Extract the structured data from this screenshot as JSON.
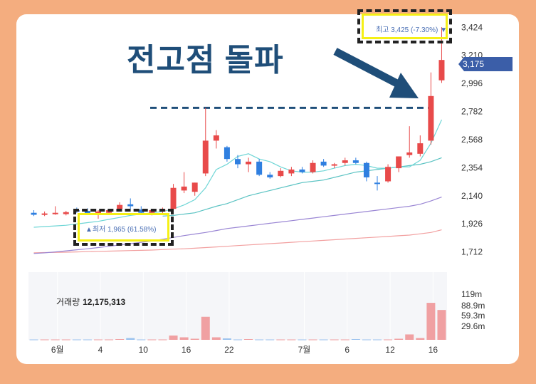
{
  "headline": "전고점 돌파",
  "high_label": "최고 3,425 (-7.30%) ▼",
  "low_label": "▲최저 1,965 (61.58%)",
  "current_price_tag": "3,175",
  "volume_label": "거래량",
  "volume_value": "12,175,313",
  "chart_data": {
    "type": "candlestick",
    "price_axis": {
      "ticks": [
        "3,424",
        "3,210",
        "2,996",
        "2,782",
        "2,568",
        "2,354",
        "2,140",
        "1,926",
        "1,712"
      ],
      "ylim": [
        1650,
        3480
      ]
    },
    "volume_axis": {
      "ticks": [
        "119m",
        "88.9m",
        "59.3m",
        "29.6m"
      ]
    },
    "x_ticks": [
      "6월",
      "4",
      "10",
      "16",
      "22",
      "7월",
      "6",
      "12",
      "16"
    ],
    "colors": {
      "up": "#e84a4a",
      "down": "#2f7fe0",
      "ma5": "#6fd6d6",
      "ma20": "#5bc3c3",
      "ma60": "#9a86d4",
      "ma120": "#f2a0a0"
    },
    "candles": [
      {
        "o": 2010,
        "h": 2030,
        "l": 1985,
        "c": 1995
      },
      {
        "o": 1995,
        "h": 2020,
        "l": 1985,
        "c": 2005
      },
      {
        "o": 2005,
        "h": 2060,
        "l": 1995,
        "c": 2010
      },
      {
        "o": 2000,
        "h": 2025,
        "l": 1990,
        "c": 2015
      },
      {
        "o": 2030,
        "h": 2050,
        "l": 2010,
        "c": 2025
      },
      {
        "o": 2025,
        "h": 2045,
        "l": 1995,
        "c": 2005
      },
      {
        "o": 1995,
        "h": 2030,
        "l": 1965,
        "c": 2020
      },
      {
        "o": 2010,
        "h": 2040,
        "l": 2000,
        "c": 2030
      },
      {
        "o": 2040,
        "h": 2090,
        "l": 2030,
        "c": 2070
      },
      {
        "o": 2075,
        "h": 2120,
        "l": 2040,
        "c": 2060
      },
      {
        "o": 2035,
        "h": 2060,
        "l": 2000,
        "c": 2010
      },
      {
        "o": 2010,
        "h": 2040,
        "l": 1990,
        "c": 2030
      },
      {
        "o": 2020,
        "h": 2050,
        "l": 2005,
        "c": 2035
      },
      {
        "o": 2040,
        "h": 2230,
        "l": 2035,
        "c": 2200
      },
      {
        "o": 2180,
        "h": 2320,
        "l": 2160,
        "c": 2210
      },
      {
        "o": 2170,
        "h": 2240,
        "l": 2140,
        "c": 2240
      },
      {
        "o": 2310,
        "h": 2810,
        "l": 2290,
        "c": 2560
      },
      {
        "o": 2560,
        "h": 2640,
        "l": 2500,
        "c": 2600
      },
      {
        "o": 2510,
        "h": 2520,
        "l": 2400,
        "c": 2420
      },
      {
        "o": 2420,
        "h": 2450,
        "l": 2350,
        "c": 2380
      },
      {
        "o": 2380,
        "h": 2430,
        "l": 2320,
        "c": 2400
      },
      {
        "o": 2400,
        "h": 2420,
        "l": 2290,
        "c": 2300
      },
      {
        "o": 2300,
        "h": 2320,
        "l": 2270,
        "c": 2280
      },
      {
        "o": 2290,
        "h": 2350,
        "l": 2280,
        "c": 2330
      },
      {
        "o": 2310,
        "h": 2360,
        "l": 2290,
        "c": 2340
      },
      {
        "o": 2340,
        "h": 2360,
        "l": 2310,
        "c": 2320
      },
      {
        "o": 2320,
        "h": 2410,
        "l": 2310,
        "c": 2390
      },
      {
        "o": 2400,
        "h": 2420,
        "l": 2360,
        "c": 2370
      },
      {
        "o": 2370,
        "h": 2390,
        "l": 2350,
        "c": 2380
      },
      {
        "o": 2390,
        "h": 2430,
        "l": 2370,
        "c": 2410
      },
      {
        "o": 2410,
        "h": 2430,
        "l": 2380,
        "c": 2390
      },
      {
        "o": 2390,
        "h": 2400,
        "l": 2250,
        "c": 2280
      },
      {
        "o": 2240,
        "h": 2290,
        "l": 2180,
        "c": 2230
      },
      {
        "o": 2250,
        "h": 2380,
        "l": 2240,
        "c": 2360
      },
      {
        "o": 2350,
        "h": 2440,
        "l": 2320,
        "c": 2440
      },
      {
        "o": 2450,
        "h": 2670,
        "l": 2430,
        "c": 2470
      },
      {
        "o": 2460,
        "h": 2600,
        "l": 2440,
        "c": 2540
      },
      {
        "o": 2560,
        "h": 3080,
        "l": 2530,
        "c": 2900
      },
      {
        "o": 3020,
        "h": 3425,
        "l": 3000,
        "c": 3175
      }
    ],
    "ma": {
      "ma5": [
        1900,
        1905,
        1910,
        1915,
        1925,
        1935,
        1945,
        1960,
        1975,
        1990,
        2000,
        2010,
        2020,
        2040,
        2070,
        2110,
        2200,
        2340,
        2380,
        2440,
        2460,
        2420,
        2400,
        2360,
        2330,
        2320,
        2320,
        2330,
        2350,
        2370,
        2380,
        2370,
        2350,
        2350,
        2360,
        2360,
        2410,
        2540,
        2720
      ],
      "ma20": [
        null,
        null,
        null,
        null,
        null,
        null,
        null,
        null,
        null,
        null,
        null,
        null,
        1985,
        1990,
        2000,
        2010,
        2035,
        2060,
        2080,
        2110,
        2140,
        2160,
        2180,
        2200,
        2220,
        2240,
        2250,
        2260,
        2280,
        2300,
        2320,
        2330,
        2340,
        2350,
        2360,
        2370,
        2380,
        2400,
        2430
      ],
      "ma60": [
        1700,
        1705,
        1712,
        1720,
        1728,
        1736,
        1745,
        1755,
        1765,
        1775,
        1785,
        1795,
        1808,
        1822,
        1836,
        1848,
        1860,
        1875,
        1890,
        1900,
        1910,
        1920,
        1930,
        1940,
        1950,
        1960,
        1970,
        1980,
        1990,
        2000,
        2010,
        2020,
        2030,
        2040,
        2050,
        2060,
        2075,
        2100,
        2130
      ],
      "ma120": [
        1705,
        1707,
        1708,
        1710,
        1712,
        1714,
        1716,
        1718,
        1720,
        1722,
        1724,
        1726,
        1730,
        1733,
        1736,
        1740,
        1745,
        1750,
        1755,
        1760,
        1765,
        1770,
        1775,
        1780,
        1785,
        1790,
        1795,
        1800,
        1805,
        1810,
        1815,
        1820,
        1825,
        1830,
        1835,
        1840,
        1850,
        1860,
        1880
      ]
    },
    "volume": [
      1,
      1,
      1,
      1,
      1,
      1,
      1,
      1,
      2,
      5,
      1,
      1,
      1,
      12,
      7,
      3,
      64,
      7,
      4,
      1,
      2,
      1,
      1,
      1,
      1,
      1,
      1,
      1,
      1,
      1,
      2,
      1,
      1,
      1,
      3,
      15,
      5,
      103,
      83
    ]
  }
}
